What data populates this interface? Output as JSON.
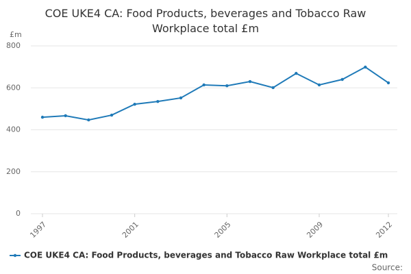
{
  "chart_data": {
    "type": "line",
    "title": "COE UKE4 CA: Food Products, beverages and Tobacco Raw Workplace total £m",
    "y_unit": "£m",
    "x": [
      1997,
      1998,
      1999,
      2000,
      2001,
      2002,
      2003,
      2004,
      2005,
      2006,
      2007,
      2008,
      2009,
      2010,
      2011,
      2012
    ],
    "xlim": [
      1997,
      2012
    ],
    "xticks": [
      1997,
      2001,
      2005,
      2009,
      2012
    ],
    "series": [
      {
        "name": "COE UKE4 CA: Food Products, beverages and Tobacco Raw Workplace total £m",
        "color": "#1f7ab8",
        "values": [
          460,
          467,
          447,
          470,
          522,
          535,
          552,
          614,
          610,
          630,
          601,
          669,
          614,
          640,
          699,
          624
        ]
      }
    ],
    "ylim": [
      0,
      800
    ],
    "yticks": [
      0,
      200,
      400,
      600,
      800
    ],
    "grid": true,
    "legend": "bottom",
    "source": "Source:"
  }
}
